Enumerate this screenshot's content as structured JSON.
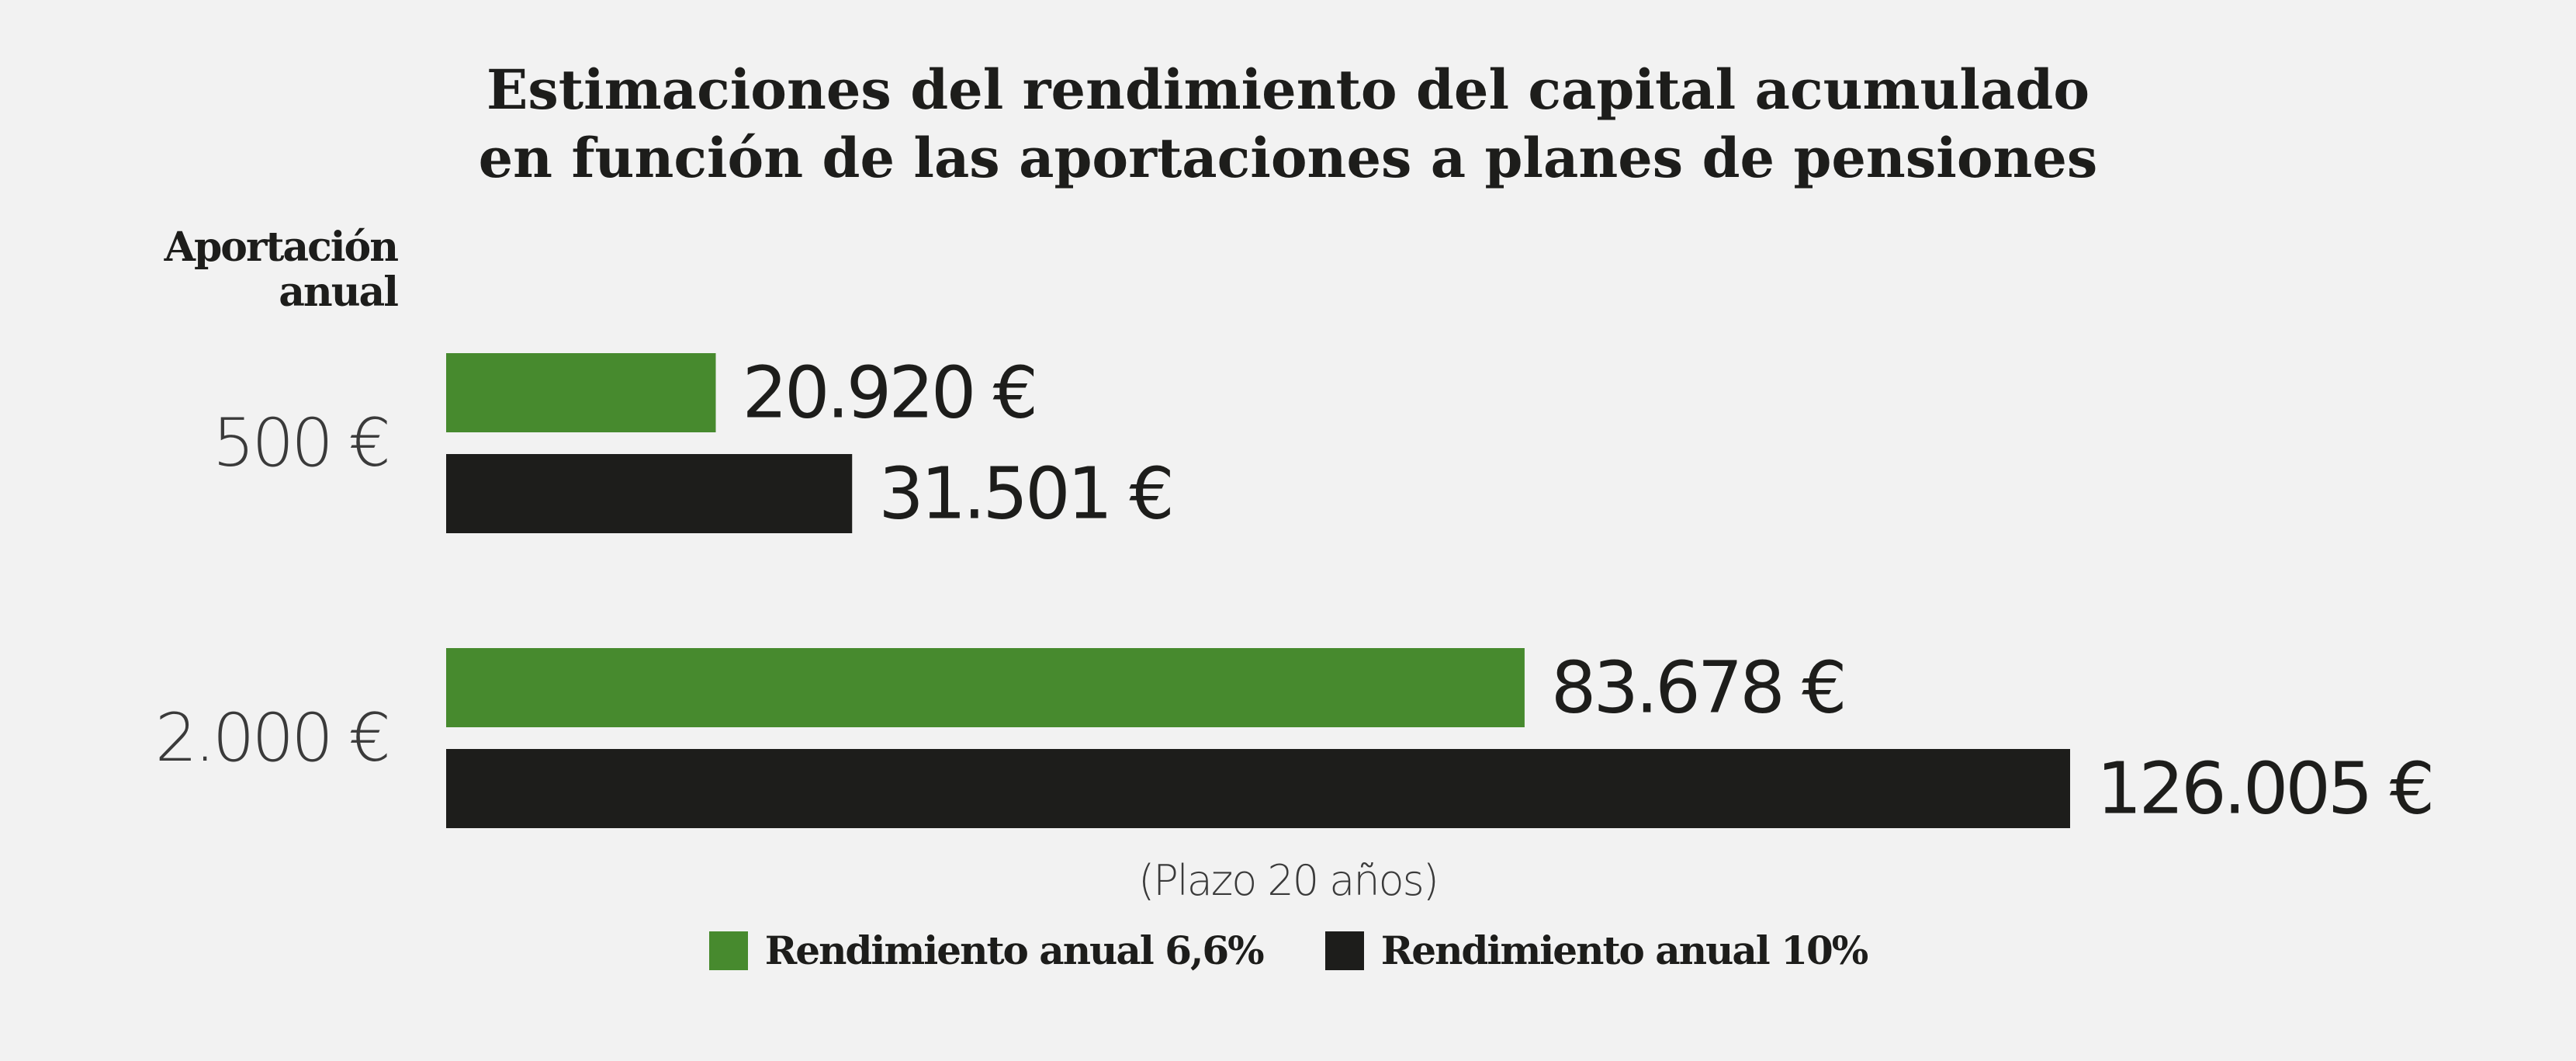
{
  "chart_data": {
    "type": "bar",
    "orientation": "horizontal",
    "title_lines": [
      "Estimaciones del rendimiento del capital acumulado",
      "en función de las aportaciones a planes de pensiones"
    ],
    "category_header_lines": [
      "Aportación",
      "anual"
    ],
    "categories": [
      "500 €",
      "2.000 €"
    ],
    "series": [
      {
        "name": "Rendimiento anual 6,6%",
        "color": "#478a2e",
        "values": [
          20920,
          83678
        ],
        "labels": [
          "20.920 €",
          "83.678 €"
        ]
      },
      {
        "name": "Rendimiento anual 10%",
        "color": "#1d1d1b",
        "values": [
          31501,
          126005
        ],
        "labels": [
          "31.501 €",
          "126.005 €"
        ]
      }
    ],
    "note": "(Plazo 20 años)",
    "xlim": [
      0,
      126005
    ],
    "grid": false,
    "legend_position": "bottom-center"
  }
}
